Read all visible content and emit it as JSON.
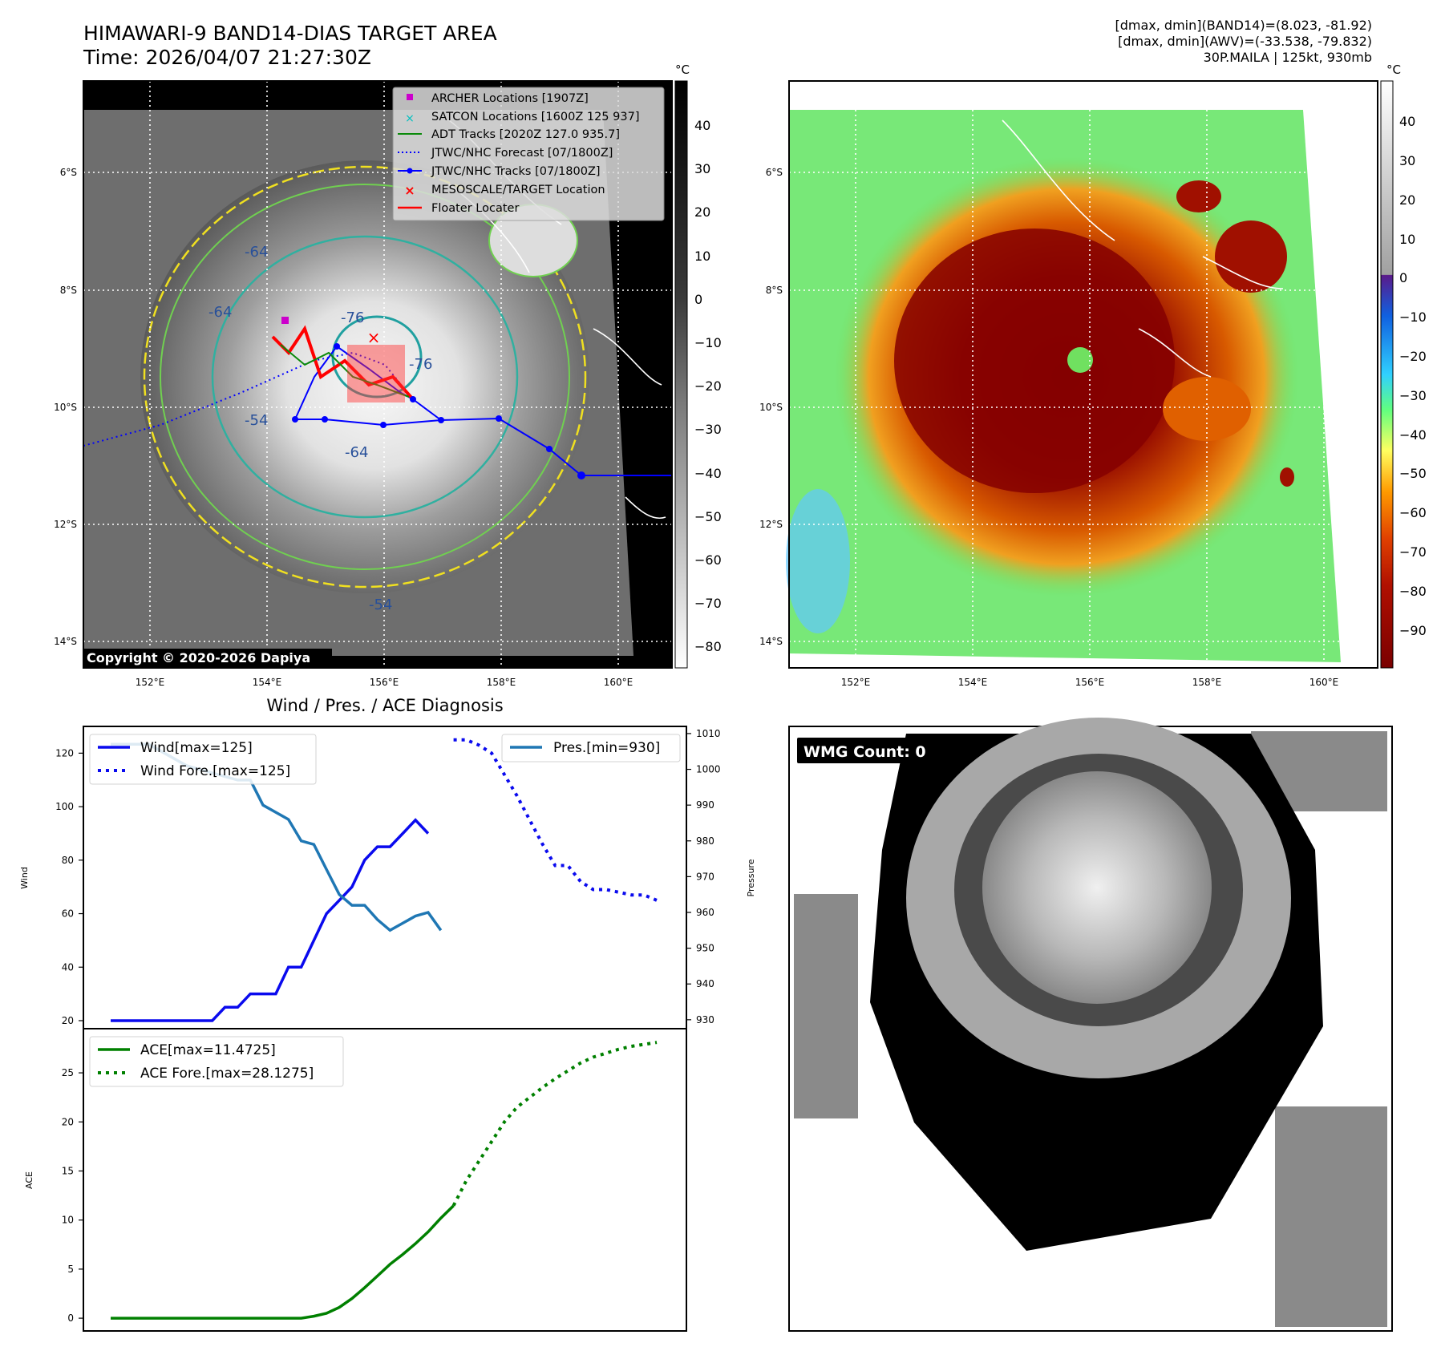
{
  "header": {
    "title_line1": "HIMAWARI-9 BAND14-DIAS TARGET AREA",
    "title_line2": "Time: 2026/04/07 21:27:30Z",
    "stats_line1": "[dmax, dmin](BAND14)=(8.023, -81.92)",
    "stats_line2": "[dmax, dmin](AWV)=(-33.538, -79.832)",
    "stats_line3": "30P.MAILA | 125kt, 930mb"
  },
  "colors": {
    "wind": "#0a0aee",
    "pressure": "#1f77b4",
    "ace": "#008000",
    "track": "#0000ff",
    "floater": "#ff0000",
    "archer": "#cc00cc",
    "satcon": "#00c0c0",
    "adt": "#0a8a0a"
  },
  "map": {
    "lat_labels": [
      "6°S",
      "8°S",
      "10°S",
      "12°S",
      "14°S"
    ],
    "lon_labels": [
      "152°E",
      "154°E",
      "156°E",
      "158°E",
      "160°E"
    ],
    "copyright": "Copyright © 2020-2026 Dapiya",
    "contour_labels": [
      "-64",
      "-76",
      "-64",
      "-54",
      "-64",
      "-54",
      "-76"
    ],
    "legend": [
      {
        "label": "ARCHER Locations [1907Z]",
        "icon": "square-marker"
      },
      {
        "label": "SATCON Locations [1600Z 125 937]",
        "icon": "x-marker"
      },
      {
        "label": "ADT Tracks [2020Z 127.0 935.7]",
        "icon": "solid-line"
      },
      {
        "label": "JTWC/NHC Forecast [07/1800Z]",
        "icon": "dotted-line"
      },
      {
        "label": "JTWC/NHC Tracks [07/1800Z]",
        "icon": "line-dot"
      },
      {
        "label": "MESOSCALE/TARGET Location",
        "icon": "red-x-marker"
      },
      {
        "label": "Floater Locater",
        "icon": "red-line"
      }
    ],
    "unit": "°C",
    "gray_ticks": [
      "40",
      "30",
      "20",
      "10",
      "0",
      "−10",
      "−20",
      "−30",
      "−40",
      "−50",
      "−60",
      "−70",
      "−80"
    ],
    "color_ticks": [
      "40",
      "30",
      "20",
      "10",
      "0",
      "−10",
      "−20",
      "−30",
      "−40",
      "−50",
      "−60",
      "−70",
      "−80",
      "−90"
    ]
  },
  "diag": {
    "title": "Wind / Pres. / ACE Diagnosis",
    "wmg": "WMG Count: 0"
  },
  "chart_data": [
    {
      "type": "line",
      "title": "Wind / Pres. / ACE Diagnosis",
      "ylabel": "Wind",
      "y2label": "Pressure",
      "ylim": [
        17,
        130
      ],
      "y2lim": [
        927.5,
        1012
      ],
      "yticks": [
        "20",
        "40",
        "60",
        "80",
        "100",
        "120"
      ],
      "y2ticks": [
        "930",
        "940",
        "950",
        "960",
        "970",
        "980",
        "990",
        "1000",
        "1010"
      ],
      "series": [
        {
          "name": "Wind[max=125]",
          "style": "solid",
          "x": [
            0,
            4,
            5,
            6,
            7,
            8,
            9,
            10,
            11,
            12,
            13,
            14,
            15,
            16,
            17,
            18,
            19,
            20,
            21,
            22,
            23,
            24,
            25
          ],
          "values": [
            20,
            20,
            20,
            20,
            20,
            20,
            25,
            25,
            30,
            30,
            30,
            40,
            40,
            50,
            60,
            65,
            70,
            80,
            85,
            85,
            90,
            95,
            90
          ]
        },
        {
          "name": "Wind Fore.[max=125]",
          "style": "dotted",
          "x": [
            27,
            28,
            29,
            30,
            31,
            32,
            33,
            34,
            35,
            36,
            37,
            38,
            39,
            40,
            41,
            42,
            43
          ],
          "values": [
            125,
            125,
            123,
            120,
            112,
            104,
            95,
            86,
            78,
            78,
            72,
            69,
            69,
            68,
            67,
            67,
            65
          ]
        },
        {
          "name": "Pres.[min=930]",
          "style": "solid",
          "axis": "right",
          "x": [
            0,
            3,
            4,
            5,
            6,
            7,
            8,
            9,
            10,
            11,
            12,
            13,
            14,
            15,
            16,
            17,
            18,
            19,
            20,
            21,
            22,
            23,
            24,
            25,
            26
          ],
          "values": [
            1007,
            1007,
            1005,
            1003,
            1001,
            1000,
            999,
            998,
            997,
            997,
            990,
            988,
            986,
            980,
            979,
            972,
            965,
            962,
            962,
            958,
            955,
            957,
            959,
            960,
            955
          ]
        }
      ],
      "legend": [
        "Wind[max=125]",
        "Wind Fore.[max=125]",
        "Pres.[min=930]"
      ]
    },
    {
      "type": "line",
      "ylabel": "ACE",
      "ylim": [
        -1.3,
        29.5
      ],
      "yticks": [
        "0",
        "5",
        "10",
        "15",
        "20",
        "25"
      ],
      "series": [
        {
          "name": "ACE[max=11.4725]",
          "style": "solid",
          "x": [
            0,
            15,
            16,
            17,
            18,
            19,
            20,
            21,
            22,
            23,
            24,
            25,
            26,
            27
          ],
          "values": [
            0,
            0,
            0.2,
            0.5,
            1.1,
            2.0,
            3.1,
            4.3,
            5.5,
            6.5,
            7.6,
            8.8,
            10.2,
            11.47
          ]
        },
        {
          "name": "ACE Fore.[max=28.1275]",
          "style": "dotted",
          "x": [
            27,
            28,
            29,
            30,
            31,
            32,
            33,
            34,
            35,
            36,
            37,
            38,
            39,
            40,
            41,
            42,
            43
          ],
          "values": [
            11.47,
            14.0,
            16.0,
            18.0,
            20.0,
            21.5,
            22.5,
            23.5,
            24.4,
            25.2,
            26.0,
            26.6,
            27.0,
            27.4,
            27.7,
            27.9,
            28.1
          ]
        }
      ],
      "legend": [
        "ACE[max=11.4725]",
        "ACE Fore.[max=28.1275]"
      ]
    }
  ]
}
